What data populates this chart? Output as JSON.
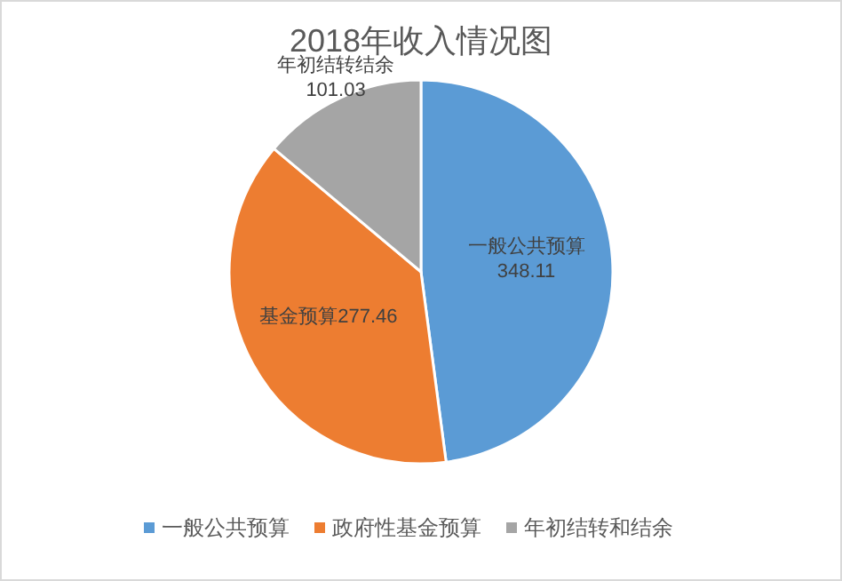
{
  "chart_data": {
    "type": "pie",
    "title": "2018年收入情况图",
    "categories": [
      "一般公共预算",
      "政府性基金预算",
      "年初结转和结余"
    ],
    "values": [
      348.11,
      277.46,
      101.03
    ],
    "colors": [
      "#5b9bd5",
      "#ed7d31",
      "#a5a5a5"
    ],
    "value_labels": [
      "一般公共预算\n348.11",
      "基金预算277.46",
      "年初结转结余\n101.03"
    ],
    "legend": "bottom"
  }
}
